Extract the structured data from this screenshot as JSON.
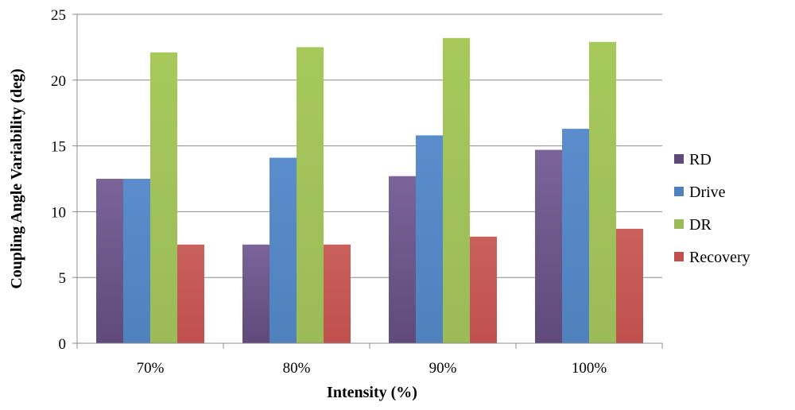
{
  "chart_data": {
    "type": "bar",
    "categories": [
      "70%",
      "80%",
      "90%",
      "100%"
    ],
    "series": [
      {
        "name": "RD",
        "values": [
          12.5,
          7.5,
          12.7,
          14.7
        ],
        "color": "#5f4a7b",
        "color_light": "#7a6498"
      },
      {
        "name": "Drive",
        "values": [
          12.5,
          14.1,
          15.8,
          16.3
        ],
        "color": "#4f81bd",
        "color_light": "#5b8dcc"
      },
      {
        "name": "DR",
        "values": [
          22.1,
          22.5,
          23.2,
          22.9
        ],
        "color": "#9bbb59",
        "color_light": "#a6c95a"
      },
      {
        "name": "Recovery",
        "values": [
          7.5,
          7.5,
          8.1,
          8.7
        ],
        "color": "#c0504d",
        "color_light": "#c9605c"
      }
    ],
    "xlabel": "Intensity (%)",
    "ylabel": "Coupling Angle Variability (deg)",
    "ylim": [
      0,
      25
    ],
    "yticks": [
      0,
      5,
      10,
      15,
      20,
      25
    ],
    "grid": true,
    "legend": "right"
  }
}
